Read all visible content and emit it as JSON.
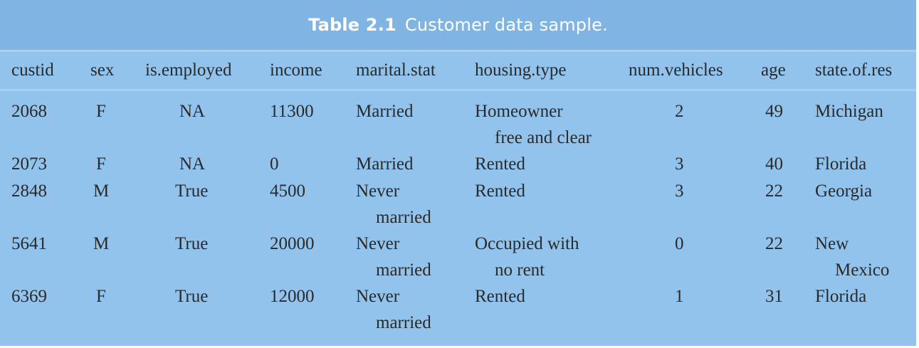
{
  "caption": {
    "number": "Table 2.1",
    "text": "Customer data sample."
  },
  "columns": [
    "custid",
    "sex",
    "is.employed",
    "income",
    "marital.stat",
    "housing.type",
    "num.vehicles",
    "age",
    "state.of.res"
  ],
  "rows": [
    {
      "custid": "2068",
      "sex": "F",
      "is_employed": "NA",
      "income": "11300",
      "marital_stat": [
        "Married"
      ],
      "housing_type": [
        "Homeowner",
        "free and clear"
      ],
      "num_vehicles": "2",
      "age": "49",
      "state_of_res": [
        "Michigan"
      ]
    },
    {
      "custid": "2073",
      "sex": "F",
      "is_employed": "NA",
      "income": "0",
      "marital_stat": [
        "Married"
      ],
      "housing_type": [
        "Rented"
      ],
      "num_vehicles": "3",
      "age": "40",
      "state_of_res": [
        "Florida"
      ]
    },
    {
      "custid": "2848",
      "sex": "M",
      "is_employed": "True",
      "income": "4500",
      "marital_stat": [
        "Never",
        "married"
      ],
      "housing_type": [
        "Rented"
      ],
      "num_vehicles": "3",
      "age": "22",
      "state_of_res": [
        "Georgia"
      ]
    },
    {
      "custid": "5641",
      "sex": "M",
      "is_employed": "True",
      "income": "20000",
      "marital_stat": [
        "Never",
        "married"
      ],
      "housing_type": [
        "Occupied with",
        "no rent"
      ],
      "num_vehicles": "0",
      "age": "22",
      "state_of_res": [
        "New",
        "Mexico"
      ]
    },
    {
      "custid": "6369",
      "sex": "F",
      "is_employed": "True",
      "income": "12000",
      "marital_stat": [
        "Never",
        "married"
      ],
      "housing_type": [
        "Rented"
      ],
      "num_vehicles": "1",
      "age": "31",
      "state_of_res": [
        "Florida"
      ]
    }
  ]
}
